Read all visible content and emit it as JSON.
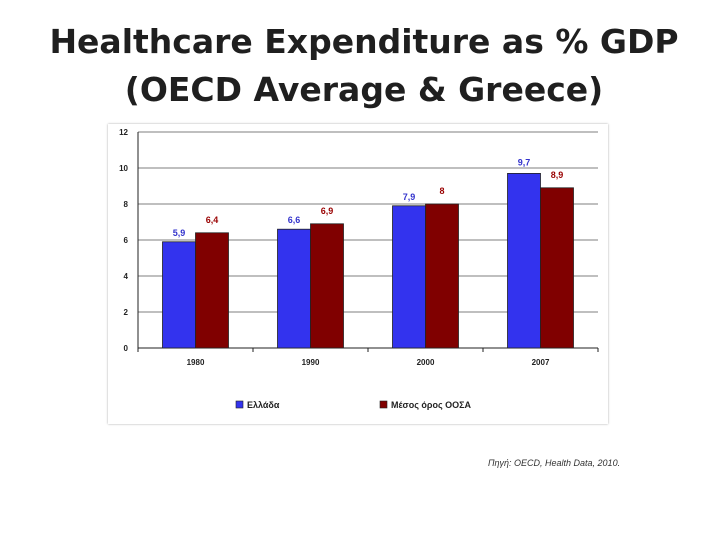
{
  "slide": {
    "title_line1": "Healthcare Expenditure as % GDP",
    "title_line2": "(OECD Average & Greece)",
    "source": "Πηγή: OECD, Health Data, 2010."
  },
  "colors": {
    "greece": "#3333ee",
    "oecd": "#800000",
    "greece_label": "#3333cc",
    "oecd_label": "#990000"
  },
  "chart_data": {
    "type": "bar",
    "title": "",
    "categories": [
      "1980",
      "1990",
      "2000",
      "2007"
    ],
    "series": [
      {
        "name": "Ελλάδα",
        "values": [
          5.9,
          6.6,
          7.9,
          9.7
        ],
        "labels": [
          "5,9",
          "6,6",
          "7,9",
          "9,7"
        ]
      },
      {
        "name": "Μέσος όρος ΟΟΣΑ",
        "values": [
          6.4,
          6.9,
          8,
          8.9
        ],
        "labels": [
          "6,4",
          "6,9",
          "8",
          "8,9"
        ]
      }
    ],
    "ylim": [
      0,
      12
    ],
    "yticks": [
      "0",
      "2",
      "4",
      "6",
      "8",
      "10",
      "12"
    ],
    "grid": true,
    "legend_position": "bottom"
  }
}
